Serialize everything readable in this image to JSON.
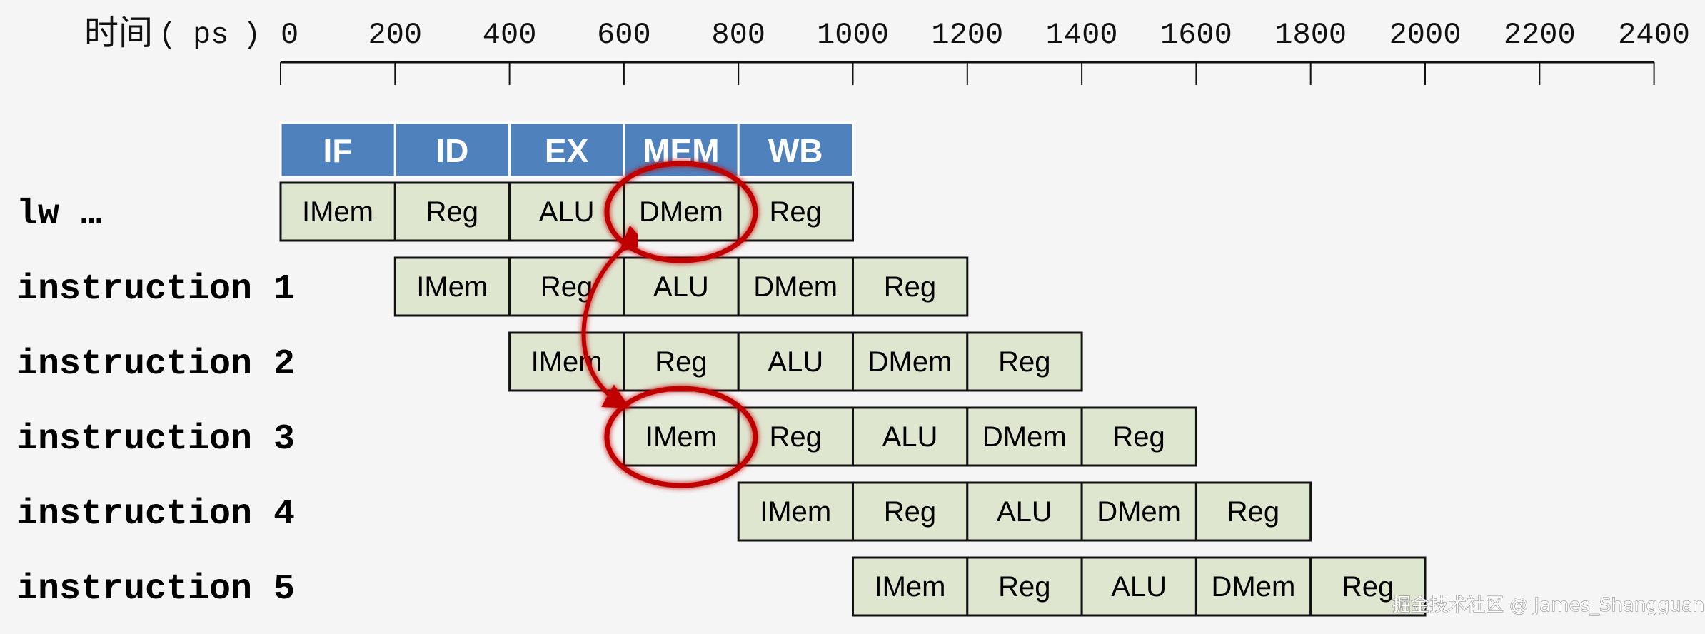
{
  "axis": {
    "title": "时间",
    "unit_open": "(",
    "unit": "ps",
    "unit_close": ")",
    "ticks": [
      "0",
      "200",
      "400",
      "600",
      "800",
      "1000",
      "1200",
      "1400",
      "1600",
      "1800",
      "2000",
      "2200",
      "2400"
    ],
    "range": [
      0,
      2400
    ]
  },
  "stages": [
    "IF",
    "ID",
    "EX",
    "MEM",
    "WB"
  ],
  "instructions": [
    {
      "label": "lw …",
      "start": 0,
      "cells": [
        "IMem",
        "Reg",
        "ALU",
        "DMem",
        "Reg"
      ]
    },
    {
      "label": "instruction 1",
      "start": 200,
      "cells": [
        "IMem",
        "Reg",
        "ALU",
        "DMem",
        "Reg"
      ]
    },
    {
      "label": "instruction 2",
      "start": 400,
      "cells": [
        "IMem",
        "Reg",
        "ALU",
        "DMem",
        "Reg"
      ]
    },
    {
      "label": "instruction 3",
      "start": 600,
      "cells": [
        "IMem",
        "Reg",
        "ALU",
        "DMem",
        "Reg"
      ]
    },
    {
      "label": "instruction 4",
      "start": 800,
      "cells": [
        "IMem",
        "Reg",
        "ALU",
        "DMem",
        "Reg"
      ]
    },
    {
      "label": "instruction 5",
      "start": 1000,
      "cells": [
        "IMem",
        "Reg",
        "ALU",
        "DMem",
        "Reg"
      ]
    }
  ],
  "highlight": {
    "from": {
      "instruction": 0,
      "stage": "DMem"
    },
    "to": {
      "instruction": 3,
      "stage": "IMem"
    }
  },
  "colors": {
    "stage_header": "#4f81bd",
    "cell_fill": "#dfe6d0",
    "highlight": "#c00000",
    "background": "#f5f5f5"
  },
  "watermark": "掘金技术社区 @ James_Shangguan"
}
